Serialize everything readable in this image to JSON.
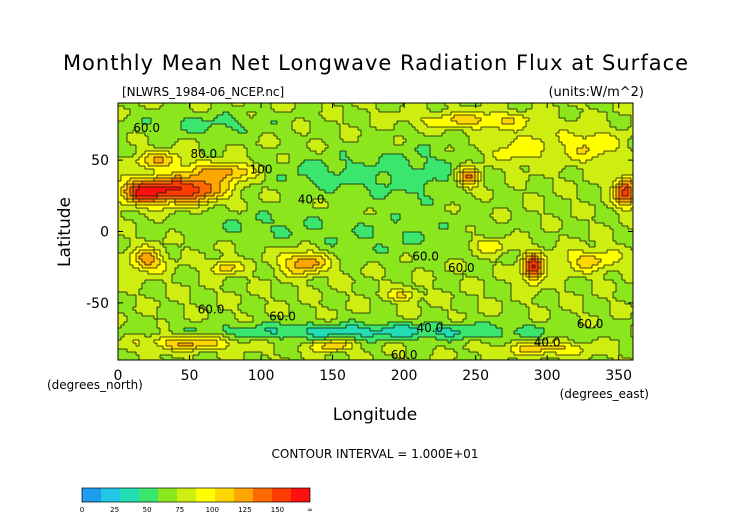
{
  "chart_data": {
    "type": "heatmap",
    "title": "Monthly Mean Net Longwave Radiation Flux at Surface",
    "subtitle_left": "[NLWRS_1984-06_NCEP.nc]",
    "subtitle_right": "(units:W/m^2)",
    "xlabel": "Longitude",
    "ylabel": "Latitude",
    "x_unit_label": "(degrees_east)",
    "y_unit_label": "(degrees_north)",
    "xlim": [
      0,
      360
    ],
    "ylim": [
      -90,
      90
    ],
    "x_ticks": [
      0,
      50,
      100,
      150,
      200,
      250,
      300,
      350
    ],
    "y_ticks": [
      -50,
      0,
      50
    ],
    "contour_interval_text": "CONTOUR INTERVAL = 1.000E+01",
    "contour_labels": [
      {
        "text": "60.0",
        "lon": 20,
        "lat": 72
      },
      {
        "text": "80.0",
        "lon": 60,
        "lat": 54
      },
      {
        "text": "100",
        "lon": 100,
        "lat": 43
      },
      {
        "text": "40.0",
        "lon": 135,
        "lat": 22
      },
      {
        "text": "60.0",
        "lon": 215,
        "lat": -18
      },
      {
        "text": "60.0",
        "lon": 240,
        "lat": -26
      },
      {
        "text": "60.0",
        "lon": 65,
        "lat": -55
      },
      {
        "text": "60.0",
        "lon": 115,
        "lat": -60
      },
      {
        "text": "40.0",
        "lon": 218,
        "lat": -68
      },
      {
        "text": "40.0",
        "lon": 300,
        "lat": -78
      },
      {
        "text": "60.0",
        "lon": 330,
        "lat": -65
      },
      {
        "text": "60.0",
        "lon": 200,
        "lat": -87
      }
    ],
    "colorbar": {
      "ticks": [
        "0",
        "25",
        "50",
        "75",
        "100",
        "125",
        "150",
        "∞"
      ],
      "colors": [
        "#1e9cf0",
        "#22c7e8",
        "#22dcb4",
        "#3be66e",
        "#8ce61e",
        "#cdee10",
        "#ffff00",
        "#ffd700",
        "#ffa500",
        "#ff6a00",
        "#ff3c00",
        "#ff1010"
      ]
    },
    "field": {
      "background": 62,
      "anomalies": [
        {
          "lon": 20,
          "lat": 28,
          "rx": 18,
          "ry": 9,
          "amp": 80
        },
        {
          "lon": 52,
          "lat": 30,
          "rx": 22,
          "ry": 10,
          "amp": 70
        },
        {
          "lon": 75,
          "lat": 42,
          "rx": 18,
          "ry": 6,
          "amp": 45
        },
        {
          "lon": 30,
          "lat": 50,
          "rx": 18,
          "ry": 6,
          "amp": 35
        },
        {
          "lon": 140,
          "lat": 40,
          "rx": 30,
          "ry": 12,
          "amp": -15
        },
        {
          "lon": 205,
          "lat": 40,
          "rx": 45,
          "ry": 20,
          "amp": -18
        },
        {
          "lon": 245,
          "lat": 38,
          "rx": 8,
          "ry": 8,
          "amp": 55
        },
        {
          "lon": 280,
          "lat": 58,
          "rx": 25,
          "ry": 12,
          "amp": 20
        },
        {
          "lon": 330,
          "lat": 60,
          "rx": 20,
          "ry": 12,
          "amp": 25
        },
        {
          "lon": 355,
          "lat": 28,
          "rx": 8,
          "ry": 10,
          "amp": 70
        },
        {
          "lon": 20,
          "lat": -20,
          "rx": 12,
          "ry": 8,
          "amp": 45
        },
        {
          "lon": 130,
          "lat": -22,
          "rx": 16,
          "ry": 8,
          "amp": 50
        },
        {
          "lon": 75,
          "lat": -25,
          "rx": 10,
          "ry": 5,
          "amp": 35
        },
        {
          "lon": 200,
          "lat": -5,
          "rx": 70,
          "ry": 15,
          "amp": -10
        },
        {
          "lon": 100,
          "lat": 5,
          "rx": 60,
          "ry": 12,
          "amp": -10
        },
        {
          "lon": 290,
          "lat": -25,
          "rx": 7,
          "ry": 10,
          "amp": 75
        },
        {
          "lon": 330,
          "lat": -20,
          "rx": 20,
          "ry": 8,
          "amp": 30
        },
        {
          "lon": 200,
          "lat": -45,
          "rx": 10,
          "ry": 4,
          "amp": 30
        },
        {
          "lon": 260,
          "lat": -10,
          "rx": 15,
          "ry": 6,
          "amp": 25
        },
        {
          "lon": 180,
          "lat": -70,
          "rx": 120,
          "ry": 6,
          "amp": -30
        },
        {
          "lon": 50,
          "lat": -78,
          "rx": 30,
          "ry": 5,
          "amp": 40
        },
        {
          "lon": 150,
          "lat": -80,
          "rx": 15,
          "ry": 4,
          "amp": 35
        },
        {
          "lon": 300,
          "lat": -82,
          "rx": 30,
          "ry": 5,
          "amp": 30
        },
        {
          "lon": 60,
          "lat": 75,
          "rx": 50,
          "ry": 8,
          "amp": -15
        },
        {
          "lon": 250,
          "lat": 78,
          "rx": 40,
          "ry": 6,
          "amp": 30
        }
      ]
    }
  }
}
